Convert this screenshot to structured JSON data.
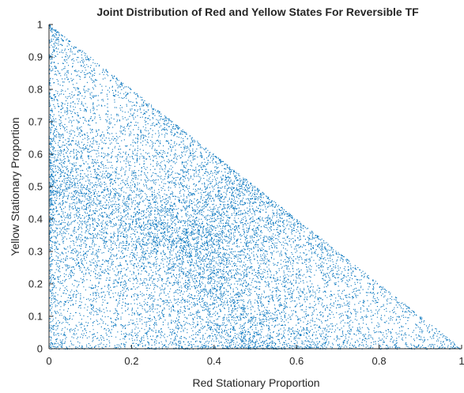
{
  "chart_data": {
    "type": "scatter",
    "title": "Joint Distribution of Red and Yellow States For Reversible TF",
    "xlabel": "Red Stationary Proportion",
    "ylabel": "Yellow Stationary Proportion",
    "xlim": [
      0,
      1
    ],
    "ylim": [
      0,
      1
    ],
    "xticks": [
      0,
      0.2,
      0.4,
      0.6,
      0.8,
      1
    ],
    "xtick_labels": [
      "0",
      "0.2",
      "0.4",
      "0.6",
      "0.8",
      "1"
    ],
    "yticks": [
      0,
      0.1,
      0.2,
      0.3,
      0.4,
      0.5,
      0.6,
      0.7,
      0.8,
      0.9,
      1
    ],
    "ytick_labels": [
      "0",
      "0.1",
      "0.2",
      "0.3",
      "0.4",
      "0.5",
      "0.6",
      "0.7",
      "0.8",
      "0.9",
      "1"
    ],
    "grid": false,
    "legend": "none",
    "series": [
      {
        "color": "#0072BD",
        "support": "points fill the simplex x >= 0, y >= 0, x + y <= 1, densest along the edges and corners",
        "point_count": 30000
      }
    ]
  }
}
